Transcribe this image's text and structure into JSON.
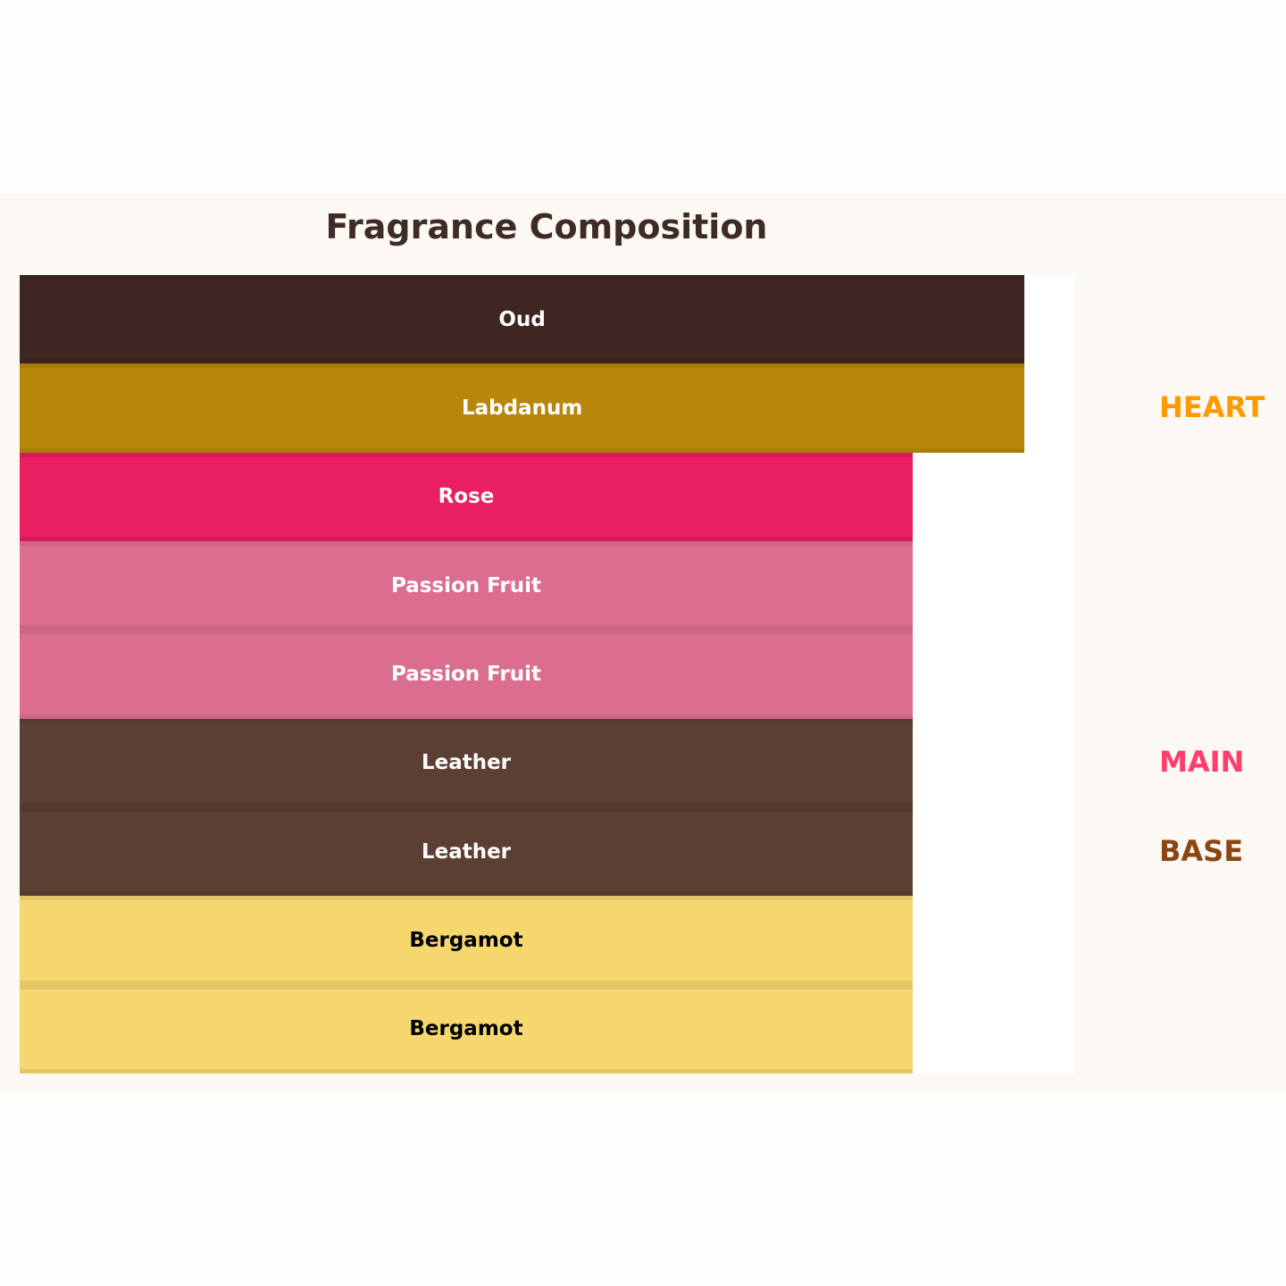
{
  "chart_data": {
    "type": "bar",
    "orientation": "horizontal-stacked-layers",
    "title": "Fragrance Composition",
    "categories": [
      "Oud",
      "Labdanum",
      "Rose",
      "Passion Fruit",
      "Passion Fruit",
      "Leather",
      "Leather",
      "Bergamot",
      "Bergamot"
    ],
    "values_percent_of_plot_width": [
      95.2,
      95.2,
      84.6,
      84.6,
      84.6,
      84.6,
      84.6,
      84.6,
      84.6
    ],
    "colors": [
      "#3e2622",
      "#b8860b",
      "#e91e63",
      "#db6e8f",
      "#db6e8f",
      "#5b3f33",
      "#5b3f33",
      "#f5d76e",
      "#f5d76e"
    ],
    "label_colors": [
      "#ffffff",
      "#ffffff",
      "#ffffff",
      "#ffffff",
      "#ffffff",
      "#ffffff",
      "#ffffff",
      "#000000",
      "#000000"
    ],
    "tier_labels": [
      {
        "text": "HEART",
        "color": "#ff9900",
        "row": 1
      },
      {
        "text": "MAIN",
        "color": "#ff3d6e",
        "row": 5
      },
      {
        "text": "BASE",
        "color": "#8b4513",
        "row": 6
      }
    ]
  }
}
